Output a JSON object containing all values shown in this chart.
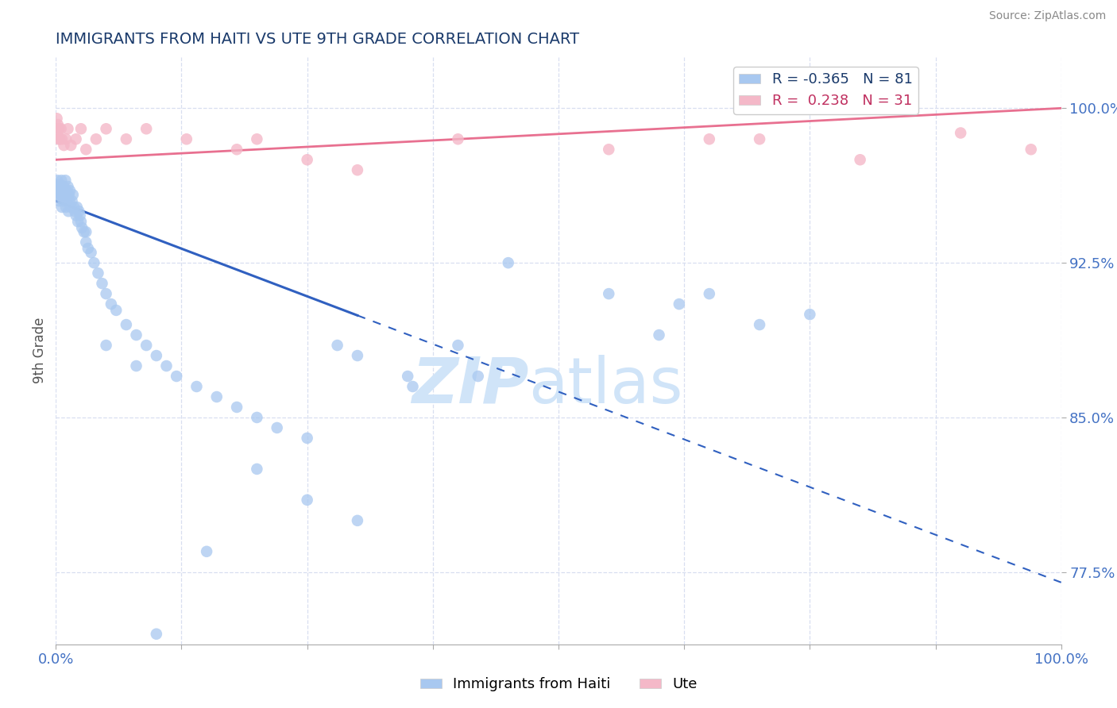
{
  "title": "IMMIGRANTS FROM HAITI VS UTE 9TH GRADE CORRELATION CHART",
  "source_text": "Source: ZipAtlas.com",
  "ylabel": "9th Grade",
  "xlim": [
    0.0,
    100.0
  ],
  "ylim": [
    74.0,
    102.5
  ],
  "yticks": [
    77.5,
    85.0,
    92.5,
    100.0
  ],
  "ytick_labels": [
    "77.5%",
    "85.0%",
    "92.5%",
    "100.0%"
  ],
  "blue_R": -0.365,
  "blue_N": 81,
  "pink_R": 0.238,
  "pink_N": 31,
  "blue_color": "#a8c8f0",
  "pink_color": "#f4b8c8",
  "blue_line_color": "#3060c0",
  "pink_line_color": "#e87090",
  "title_color": "#1a3a6b",
  "axis_label_color": "#4472c4",
  "legend_blue_color": "#a8c8f0",
  "legend_pink_color": "#f4b8c8",
  "blue_scatter_x": [
    0.15,
    0.2,
    0.25,
    0.3,
    0.35,
    0.4,
    0.45,
    0.5,
    0.55,
    0.6,
    0.65,
    0.7,
    0.75,
    0.8,
    0.85,
    0.9,
    0.95,
    1.0,
    1.05,
    1.1,
    1.15,
    1.2,
    1.25,
    1.3,
    1.35,
    1.4,
    1.5,
    1.6,
    1.7,
    1.8,
    1.9,
    2.0,
    2.1,
    2.2,
    2.3,
    2.4,
    2.5,
    2.6,
    2.8,
    3.0,
    3.2,
    3.5,
    3.8,
    4.2,
    4.6,
    5.0,
    5.5,
    6.0,
    7.0,
    8.0,
    9.0,
    10.0,
    11.0,
    12.0,
    14.0,
    16.0,
    18.0,
    20.0,
    22.0,
    25.0,
    28.0,
    30.0,
    35.0,
    35.5,
    40.0,
    42.0,
    45.0,
    55.0,
    60.0,
    62.0,
    65.0,
    70.0,
    75.0,
    30.0,
    25.0,
    20.0,
    15.0,
    10.0,
    8.0,
    5.0,
    3.0
  ],
  "blue_scatter_y": [
    96.5,
    96.2,
    95.8,
    96.0,
    95.5,
    96.3,
    96.0,
    95.8,
    96.5,
    95.2,
    95.8,
    96.0,
    95.5,
    96.2,
    96.0,
    95.8,
    96.5,
    95.2,
    96.0,
    95.5,
    95.8,
    96.2,
    95.0,
    95.8,
    95.5,
    96.0,
    95.2,
    95.5,
    95.8,
    95.2,
    95.0,
    94.8,
    95.2,
    94.5,
    95.0,
    94.8,
    94.5,
    94.2,
    94.0,
    93.5,
    93.2,
    93.0,
    92.5,
    92.0,
    91.5,
    91.0,
    90.5,
    90.2,
    89.5,
    89.0,
    88.5,
    88.0,
    87.5,
    87.0,
    86.5,
    86.0,
    85.5,
    85.0,
    84.5,
    84.0,
    88.5,
    88.0,
    87.0,
    86.5,
    88.5,
    87.0,
    92.5,
    91.0,
    89.0,
    90.5,
    91.0,
    89.5,
    90.0,
    80.0,
    81.0,
    82.5,
    78.5,
    74.5,
    87.5,
    88.5,
    94.0
  ],
  "pink_scatter_x": [
    0.1,
    0.15,
    0.2,
    0.25,
    0.3,
    0.4,
    0.5,
    0.6,
    0.8,
    1.0,
    1.2,
    1.5,
    2.0,
    2.5,
    3.0,
    4.0,
    5.0,
    7.0,
    9.0,
    13.0,
    18.0,
    20.0,
    25.0,
    30.0,
    40.0,
    55.0,
    65.0,
    70.0,
    80.0,
    90.0,
    97.0
  ],
  "pink_scatter_y": [
    99.5,
    98.8,
    99.2,
    98.5,
    99.0,
    98.5,
    99.0,
    98.5,
    98.2,
    98.5,
    99.0,
    98.2,
    98.5,
    99.0,
    98.0,
    98.5,
    99.0,
    98.5,
    99.0,
    98.5,
    98.0,
    98.5,
    97.5,
    97.0,
    98.5,
    98.0,
    98.5,
    98.5,
    97.5,
    98.8,
    98.0
  ],
  "blue_trend_x_start": 0.0,
  "blue_trend_x_solid_end": 30.0,
  "blue_trend_x_end": 100.0,
  "blue_trend_y_start": 95.5,
  "blue_trend_y_end": 77.0,
  "pink_trend_x_start": 0.0,
  "pink_trend_x_end": 100.0,
  "pink_trend_y_start": 97.5,
  "pink_trend_y_end": 100.0,
  "watermark_color": "#d0e4f8",
  "background_color": "#ffffff",
  "grid_color": "#d8dff0"
}
